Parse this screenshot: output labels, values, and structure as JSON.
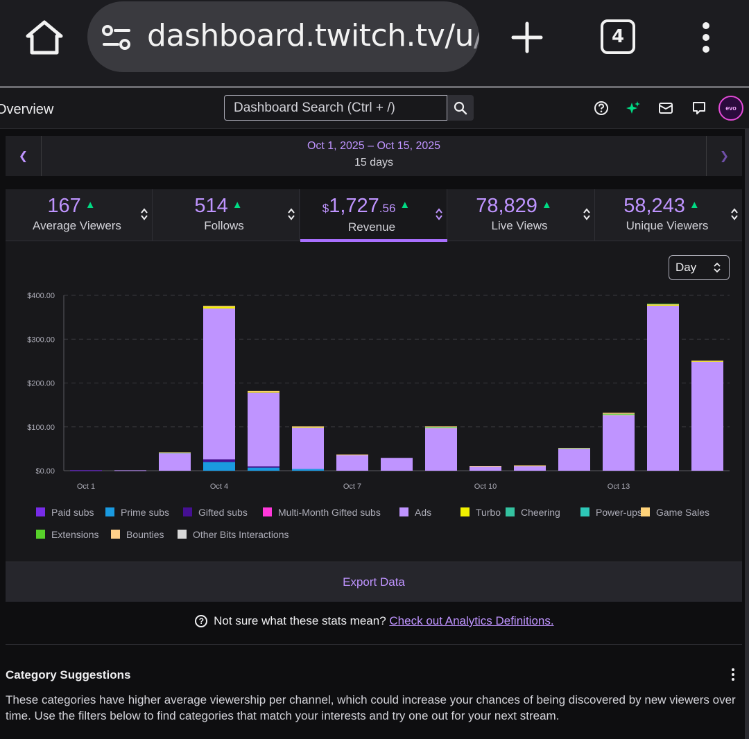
{
  "browser": {
    "url_main": "dashboard.twitch.tv/u",
    "url_fade": "/",
    "tab_count": "4"
  },
  "topnav": {
    "page_title": "Overview",
    "search_placeholder": "Dashboard Search (Ctrl + /)",
    "avatar_text": "evo"
  },
  "date_range": {
    "range": "Oct 1, 2025 – Oct 15, 2025",
    "days": "15 days"
  },
  "stats": [
    {
      "value": "167",
      "label": "Average Viewers"
    },
    {
      "value": "514",
      "label": "Follows"
    },
    {
      "prefix": "$",
      "value": "1,727",
      "cents": ".56",
      "label": "Revenue"
    },
    {
      "value": "78,829",
      "label": "Live Views"
    },
    {
      "value": "58,243",
      "label": "Unique Viewers"
    }
  ],
  "interval": {
    "selected": "Day"
  },
  "chart_data": {
    "type": "bar",
    "stacked": true,
    "categories": [
      "Oct 1",
      "Oct 2",
      "Oct 3",
      "Oct 4",
      "Oct 5",
      "Oct 6",
      "Oct 7",
      "Oct 8",
      "Oct 9",
      "Oct 10",
      "Oct 11",
      "Oct 12",
      "Oct 13",
      "Oct 14",
      "Oct 15"
    ],
    "x_tick_labels": [
      "Oct 1",
      "",
      "",
      "Oct 4",
      "",
      "",
      "Oct 7",
      "",
      "",
      "Oct 10",
      "",
      "",
      "Oct 13",
      "",
      ""
    ],
    "y_tick_labels": [
      "$0.00",
      "$100.00",
      "$200.00",
      "$300.00",
      "$400.00"
    ],
    "y_ticks": [
      0,
      100,
      200,
      300,
      400
    ],
    "ylim": [
      0,
      400
    ],
    "grid": true,
    "series": [
      {
        "name": "Paid subs",
        "color": "#772ce8",
        "values": [
          1,
          0,
          0,
          0,
          0,
          0,
          0,
          0,
          0,
          0,
          0,
          0,
          0,
          0,
          0
        ]
      },
      {
        "name": "Prime subs",
        "color": "#1a9ae0",
        "values": [
          0,
          0,
          0,
          20,
          7,
          4,
          0,
          0,
          0,
          0,
          0,
          0,
          0,
          0,
          0
        ]
      },
      {
        "name": "Gifted subs",
        "color": "#451093",
        "values": [
          0,
          0,
          0,
          6,
          3,
          0,
          0,
          0,
          0,
          0,
          0,
          0,
          0,
          0,
          0
        ]
      },
      {
        "name": "Multi-Month Gifted subs",
        "color": "#ff38db",
        "values": [
          0,
          0,
          0,
          0,
          0,
          0,
          0,
          0,
          0,
          0,
          0,
          0,
          0,
          0,
          0
        ]
      },
      {
        "name": "Ads",
        "color": "#bf94ff",
        "values": [
          0,
          1,
          40,
          344,
          168,
          95,
          36,
          29,
          98,
          10,
          11,
          50,
          127,
          377,
          249
        ]
      },
      {
        "name": "Turbo",
        "color": "#f0f000",
        "values": [
          0,
          0,
          0,
          4,
          2,
          1,
          0,
          0,
          1,
          0,
          0,
          0,
          1,
          1,
          1
        ]
      },
      {
        "name": "Cheering",
        "color": "#34c2a0",
        "values": [
          0,
          0,
          1,
          0,
          0,
          0,
          0,
          0,
          1,
          0,
          0,
          1,
          2,
          0,
          0
        ]
      },
      {
        "name": "Power-ups",
        "color": "#2ec7b8",
        "values": [
          0,
          0,
          0,
          0,
          0,
          0,
          0,
          0,
          0,
          0,
          0,
          0,
          0,
          0,
          0
        ]
      },
      {
        "name": "Game Sales",
        "color": "#ffd37a",
        "values": [
          0,
          0,
          1,
          2,
          2,
          1,
          1,
          0,
          1,
          1,
          1,
          1,
          2,
          2,
          1
        ]
      },
      {
        "name": "Extensions",
        "color": "#57d12a",
        "values": [
          0,
          0,
          0,
          0,
          0,
          0,
          0,
          0,
          0,
          0,
          0,
          0,
          0,
          1,
          0
        ]
      },
      {
        "name": "Bounties",
        "color": "#ffd08a",
        "values": [
          0,
          0,
          0,
          0,
          0,
          0,
          0,
          0,
          0,
          0,
          0,
          0,
          0,
          0,
          0
        ]
      },
      {
        "name": "Other Bits Interactions",
        "color": "#d8d8d8",
        "values": [
          0,
          0,
          0,
          0,
          0,
          0,
          0,
          0,
          0,
          0,
          0,
          0,
          0,
          0,
          0
        ]
      }
    ]
  },
  "export_label": "Export Data",
  "help": {
    "text": "Not sure what these stats mean?",
    "link": "Check out Analytics Definitions."
  },
  "category": {
    "title": "Category Suggestions",
    "description": "These categories have higher average viewership per channel, which could increase your chances of being discovered by new viewers over time. Use the filters below to find categories that match your interests and try one out for your next stream."
  }
}
